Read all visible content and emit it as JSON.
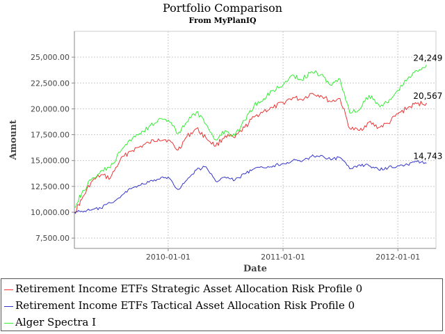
{
  "chart_data": {
    "type": "line",
    "title": "Portfolio Comparison",
    "subtitle": "From MyPlanIQ",
    "xlabel": "Date",
    "ylabel": "Amount",
    "xlim": [
      "2009-03-09",
      "2012-05-01"
    ],
    "ylim": [
      6500,
      27500
    ],
    "y_ticks": [
      7500,
      10000,
      12500,
      15000,
      17500,
      20000,
      22500,
      25000
    ],
    "y_tick_labels": [
      "7,500.00",
      "10,000.00",
      "12,500.00",
      "15,000.00",
      "17,500.00",
      "20,000.00",
      "22,500.00",
      "25,000.00"
    ],
    "x_ticks": [
      "2010-01-01",
      "2011-01-01",
      "2012-01-01"
    ],
    "grid": true,
    "legend_position": "bottom",
    "series": [
      {
        "name": "Retirement Income ETFs Strategic Asset Allocation Risk Profile 0",
        "color": "#ee3333",
        "end_label": "20,567",
        "points": [
          [
            "2009-03-09",
            10000
          ],
          [
            "2009-04-01",
            11200
          ],
          [
            "2009-05-01",
            12900
          ],
          [
            "2009-06-01",
            13600
          ],
          [
            "2009-07-01",
            13300
          ],
          [
            "2009-08-01",
            15000
          ],
          [
            "2009-09-01",
            15900
          ],
          [
            "2009-10-01",
            16300
          ],
          [
            "2009-11-01",
            16700
          ],
          [
            "2009-12-01",
            17100
          ],
          [
            "2010-01-01",
            17000
          ],
          [
            "2010-02-01",
            16000
          ],
          [
            "2010-03-01",
            17300
          ],
          [
            "2010-04-01",
            18100
          ],
          [
            "2010-05-01",
            17200
          ],
          [
            "2010-06-01",
            16400
          ],
          [
            "2010-07-01",
            17400
          ],
          [
            "2010-08-01",
            17200
          ],
          [
            "2010-09-01",
            18200
          ],
          [
            "2010-10-01",
            19200
          ],
          [
            "2010-11-01",
            19800
          ],
          [
            "2010-12-01",
            20100
          ],
          [
            "2011-01-01",
            20600
          ],
          [
            "2011-02-01",
            21100
          ],
          [
            "2011-03-01",
            20900
          ],
          [
            "2011-04-01",
            21500
          ],
          [
            "2011-05-01",
            21300
          ],
          [
            "2011-06-01",
            20700
          ],
          [
            "2011-07-01",
            21000
          ],
          [
            "2011-08-01",
            18100
          ],
          [
            "2011-09-01",
            17900
          ],
          [
            "2011-10-01",
            18700
          ],
          [
            "2011-11-01",
            18200
          ],
          [
            "2011-12-01",
            18600
          ],
          [
            "2012-01-01",
            19500
          ],
          [
            "2012-02-01",
            20100
          ],
          [
            "2012-03-01",
            20500
          ],
          [
            "2012-04-01",
            20567
          ]
        ]
      },
      {
        "name": "Retirement Income ETFs Tactical Asset Allocation Risk Profile 0",
        "color": "#3333cc",
        "end_label": "14,743",
        "points": [
          [
            "2009-03-09",
            10000
          ],
          [
            "2009-04-01",
            10100
          ],
          [
            "2009-05-01",
            10200
          ],
          [
            "2009-06-01",
            10400
          ],
          [
            "2009-07-01",
            10900
          ],
          [
            "2009-08-01",
            11400
          ],
          [
            "2009-09-01",
            12300
          ],
          [
            "2009-10-01",
            12600
          ],
          [
            "2009-11-01",
            12900
          ],
          [
            "2009-12-01",
            13200
          ],
          [
            "2010-01-01",
            13400
          ],
          [
            "2010-02-01",
            12200
          ],
          [
            "2010-03-01",
            13100
          ],
          [
            "2010-04-01",
            14100
          ],
          [
            "2010-05-01",
            14400
          ],
          [
            "2010-06-01",
            13000
          ],
          [
            "2010-07-01",
            13400
          ],
          [
            "2010-08-01",
            13100
          ],
          [
            "2010-09-01",
            13700
          ],
          [
            "2010-10-01",
            14200
          ],
          [
            "2010-11-01",
            14300
          ],
          [
            "2010-12-01",
            14500
          ],
          [
            "2011-01-01",
            14700
          ],
          [
            "2011-02-01",
            15000
          ],
          [
            "2011-03-01",
            14900
          ],
          [
            "2011-04-01",
            15400
          ],
          [
            "2011-05-01",
            15500
          ],
          [
            "2011-06-01",
            15100
          ],
          [
            "2011-07-01",
            15300
          ],
          [
            "2011-08-01",
            14200
          ],
          [
            "2011-09-01",
            14600
          ],
          [
            "2011-10-01",
            14500
          ],
          [
            "2011-11-01",
            14100
          ],
          [
            "2011-12-01",
            14300
          ],
          [
            "2012-01-01",
            14500
          ],
          [
            "2012-02-01",
            14600
          ],
          [
            "2012-03-01",
            14900
          ],
          [
            "2012-04-01",
            14743
          ]
        ]
      },
      {
        "name": "Alger Spectra I",
        "color": "#33ee33",
        "end_label": "24,249",
        "points": [
          [
            "2009-03-09",
            10500
          ],
          [
            "2009-04-01",
            11800
          ],
          [
            "2009-05-01",
            13100
          ],
          [
            "2009-06-01",
            14000
          ],
          [
            "2009-07-01",
            14300
          ],
          [
            "2009-08-01",
            15800
          ],
          [
            "2009-09-01",
            17000
          ],
          [
            "2009-10-01",
            17600
          ],
          [
            "2009-11-01",
            18300
          ],
          [
            "2009-12-01",
            19000
          ],
          [
            "2010-01-01",
            18900
          ],
          [
            "2010-02-01",
            17600
          ],
          [
            "2010-03-01",
            18700
          ],
          [
            "2010-04-01",
            19700
          ],
          [
            "2010-05-01",
            18500
          ],
          [
            "2010-06-01",
            17000
          ],
          [
            "2010-07-01",
            17900
          ],
          [
            "2010-08-01",
            17400
          ],
          [
            "2010-09-01",
            18900
          ],
          [
            "2010-10-01",
            20300
          ],
          [
            "2010-11-01",
            21000
          ],
          [
            "2010-12-01",
            21800
          ],
          [
            "2011-01-01",
            22300
          ],
          [
            "2011-02-01",
            23300
          ],
          [
            "2011-03-01",
            22800
          ],
          [
            "2011-04-01",
            23600
          ],
          [
            "2011-05-01",
            23300
          ],
          [
            "2011-06-01",
            22300
          ],
          [
            "2011-07-01",
            22900
          ],
          [
            "2011-08-01",
            19600
          ],
          [
            "2011-09-01",
            19900
          ],
          [
            "2011-10-01",
            21300
          ],
          [
            "2011-11-01",
            20400
          ],
          [
            "2011-12-01",
            20600
          ],
          [
            "2012-01-01",
            21800
          ],
          [
            "2012-02-01",
            22900
          ],
          [
            "2012-03-01",
            23700
          ],
          [
            "2012-04-01",
            24249
          ]
        ]
      }
    ]
  }
}
